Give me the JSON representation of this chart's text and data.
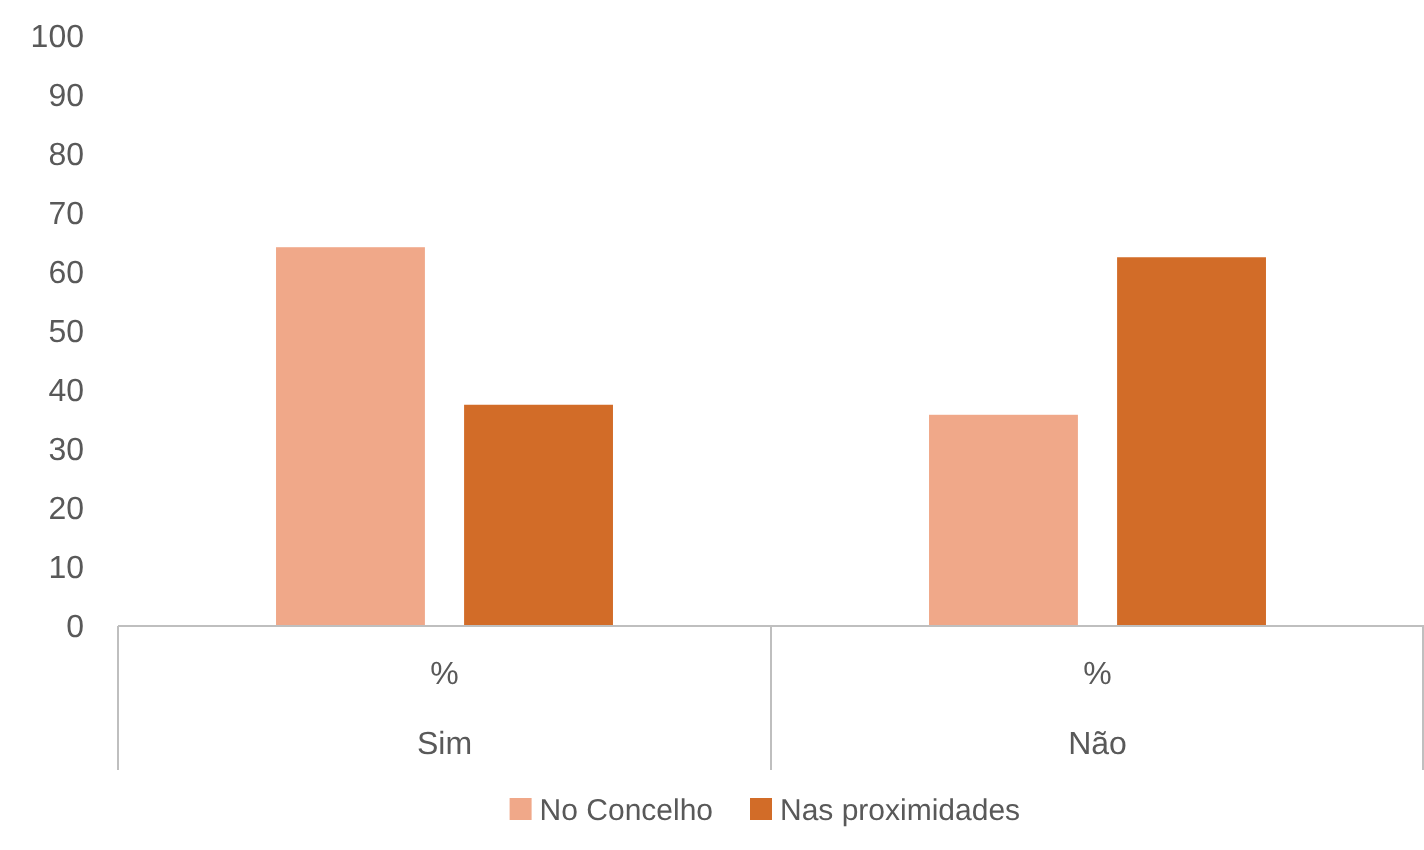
{
  "chart_data": {
    "type": "bar",
    "categories": [
      "%\nSim",
      "%\nNão"
    ],
    "series": [
      {
        "name": "No Concelho",
        "color": "#f0a889",
        "values": [
          64.2,
          35.8
        ]
      },
      {
        "name": "Nas proximidades",
        "color": "#d26c28",
        "values": [
          37.5,
          62.5
        ]
      }
    ],
    "ylim": [
      0,
      100
    ],
    "yticks": [
      0,
      10,
      20,
      30,
      40,
      50,
      60,
      70,
      80,
      90,
      100
    ],
    "grid": false,
    "legend": "bottom"
  }
}
